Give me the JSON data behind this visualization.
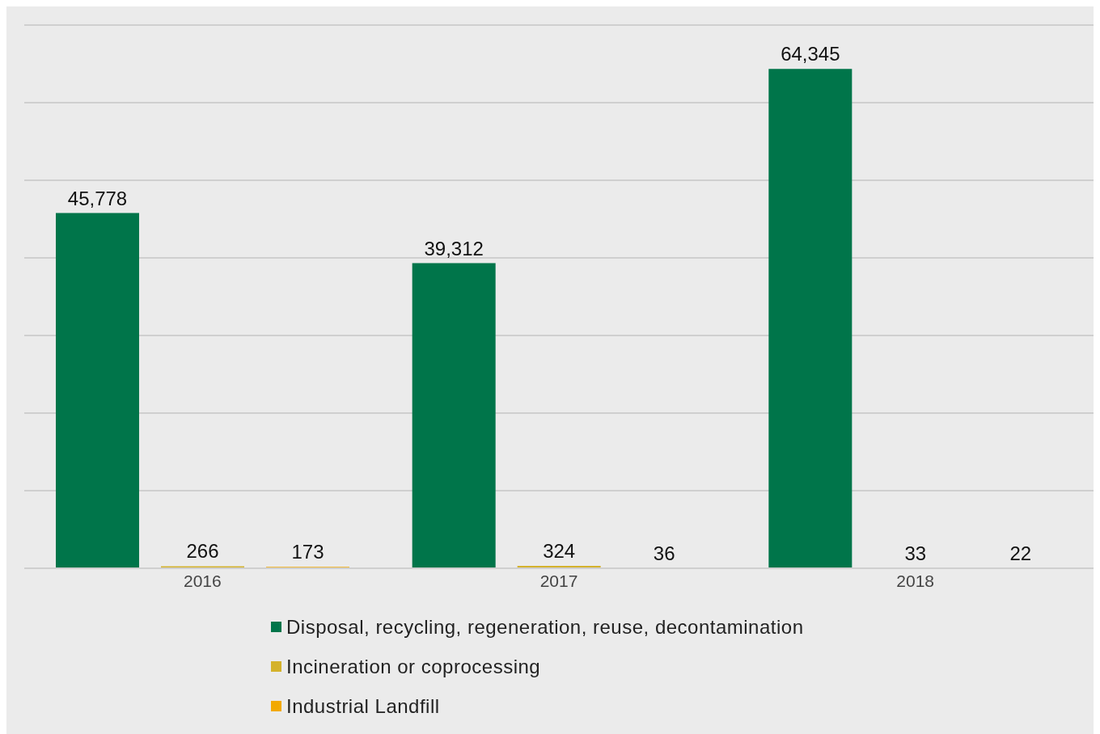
{
  "chart_data": {
    "type": "bar",
    "categories": [
      "2016",
      "2017",
      "2018"
    ],
    "series": [
      {
        "name": "Disposal, recycling, regeneration, reuse, decontamination",
        "color": "#00754a",
        "values": [
          45778,
          39312,
          64345
        ],
        "value_labels": [
          "45,778",
          "39,312",
          "64,345"
        ]
      },
      {
        "name": "Incineration or coprocessing",
        "color": "#d4b22c",
        "values": [
          266,
          324,
          33
        ],
        "value_labels": [
          "266",
          "324",
          "33"
        ]
      },
      {
        "name": "Industrial Landfill",
        "color": "#f2a900",
        "values": [
          173,
          36,
          22
        ],
        "value_labels": [
          "173",
          "36",
          "22"
        ]
      }
    ],
    "ylim": [
      0,
      70000
    ],
    "tick_labels": "x",
    "grid": "y",
    "legend": "bottom"
  }
}
